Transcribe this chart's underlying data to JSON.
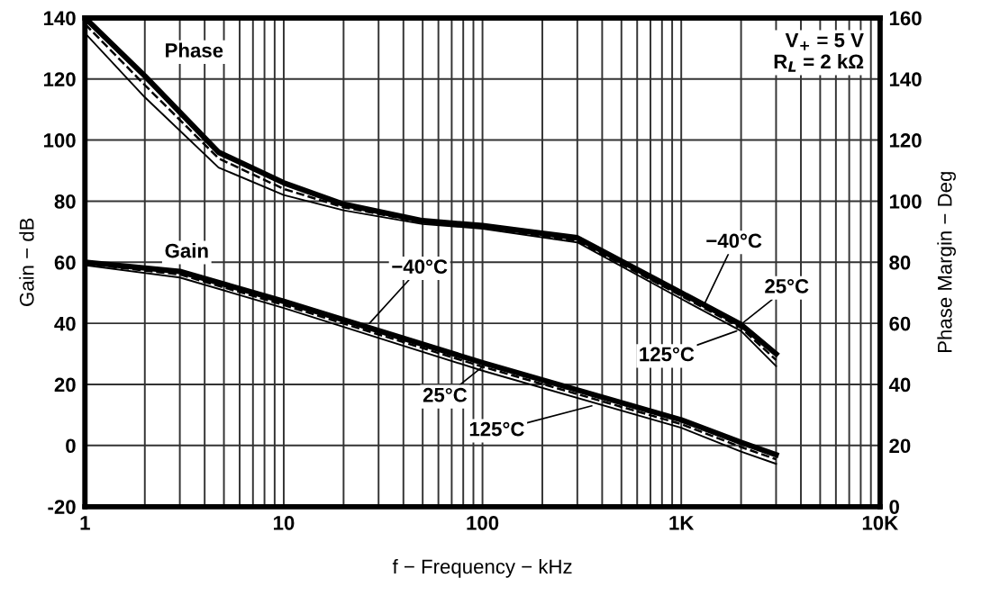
{
  "chart_data": {
    "type": "line",
    "xlabel": "f − Frequency − kHz",
    "ylabel": "Gain − dB",
    "y2label": "Phase Margin − Deg",
    "log": "x",
    "grid": true,
    "marker": "none",
    "xlim": [
      1,
      10000
    ],
    "xticks": [
      1,
      10,
      100,
      {
        "value": 1000,
        "label": "1K"
      },
      {
        "value": 10000,
        "label": "10K"
      }
    ],
    "ylim": [
      -20,
      140
    ],
    "yticks": [
      -20,
      0,
      20,
      40,
      60,
      80,
      100,
      120,
      140
    ],
    "y2lim": [
      0,
      160
    ],
    "y2ticks": [
      0,
      20,
      40,
      60,
      80,
      100,
      120,
      140,
      160
    ],
    "series": [
      {
        "color": "#000000",
        "line_style": "solid",
        "axis": "y2",
        "x": [
          1,
          2,
          4.7,
          10,
          20,
          50,
          100,
          300,
          1000,
          2000,
          3000
        ],
        "values": [
          160,
          141,
          116,
          106,
          99,
          93.6,
          92,
          88,
          70,
          59.6,
          50
        ]
      },
      {
        "color": "#000000",
        "line_style": "dashed",
        "axis": "y2",
        "x": [
          1,
          2,
          4.7,
          10,
          20,
          50,
          100,
          300,
          1000,
          2000,
          3000
        ],
        "values": [
          158,
          138,
          114,
          104,
          98,
          93,
          91.5,
          87,
          69,
          58.5,
          48
        ]
      },
      {
        "color": "#000000",
        "line_style": "solid",
        "axis": "y2",
        "x": [
          1,
          2,
          4.7,
          10,
          20,
          50,
          100,
          300,
          1000,
          2000,
          3000
        ],
        "values": [
          155,
          134,
          111,
          102,
          97,
          92.5,
          91,
          86.5,
          68,
          57.5,
          46
        ]
      },
      {
        "color": "#000000",
        "line_style": "solid",
        "x": [
          1,
          3,
          10,
          100,
          1000,
          2000,
          3000
        ],
        "values": [
          60,
          57,
          47.2,
          27.1,
          8.4,
          1,
          -3
        ]
      },
      {
        "color": "#000000",
        "line_style": "dashed",
        "x": [
          1,
          3,
          10,
          100,
          1000,
          2000,
          3000
        ],
        "values": [
          59.5,
          56,
          46,
          25.8,
          7,
          -0.5,
          -4.5
        ]
      },
      {
        "color": "#000000",
        "line_style": "solid",
        "x": [
          1,
          3,
          10,
          100,
          1000,
          2000,
          3000
        ],
        "values": [
          59,
          55,
          45,
          24.5,
          5.8,
          -2,
          -6
        ]
      }
    ],
    "annotations": [
      "Phase",
      "Gain",
      "V$_{+}$ = 5 V\nR$_{L}$ = 2 kΩ",
      {
        "text": "−40°C",
        "x": 27,
        "y": 40
      },
      {
        "text": "25°C",
        "x": 100,
        "y": 25.8
      },
      {
        "text": "125°C",
        "x": 355,
        "y": 13
      },
      {
        "text": "−40°C",
        "x": 1300,
        "y": 46
      },
      {
        "text": "25°C",
        "x": 1900,
        "y": 38.5
      },
      {
        "text": "125°C",
        "x": 1900,
        "y": 37.5
      }
    ]
  }
}
